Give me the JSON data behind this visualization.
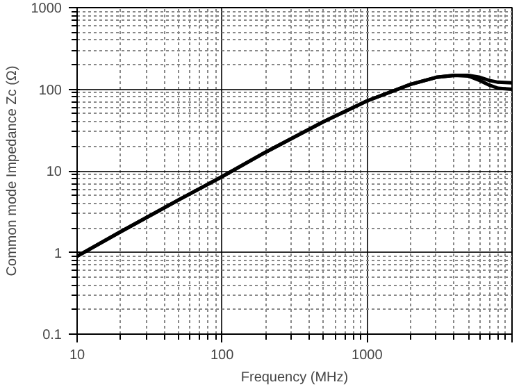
{
  "chart_data": {
    "type": "line",
    "xlabel": "Frequency (MHz)",
    "ylabel": "Common mode Impedance Zc (Ω)",
    "log": "xy",
    "grid": true,
    "line_style": "solid",
    "xlim": [
      10,
      10000
    ],
    "xticks": [
      10,
      100,
      1000,
      {
        "value": 10000,
        "label": null
      }
    ],
    "ylim": [
      0.1,
      1000
    ],
    "yticks": [
      0.1,
      1,
      10,
      100,
      1000
    ],
    "series": [
      {
        "color": "#000000",
        "x": [
          10,
          20,
          50,
          100,
          200,
          500,
          1000,
          2000,
          3000,
          4000,
          5000,
          6000,
          7000,
          8000,
          10000
        ],
        "values": [
          0.9,
          1.8,
          4.4,
          8.5,
          17,
          40,
          72,
          115,
          140,
          148,
          148,
          140,
          128,
          122,
          120
        ]
      },
      {
        "color": "#000000",
        "x": [
          10,
          20,
          50,
          100,
          200,
          500,
          1000,
          2000,
          3000,
          4000,
          5000,
          6000,
          7000,
          8000,
          10000
        ],
        "values": [
          0.9,
          1.8,
          4.4,
          8.5,
          17,
          40,
          72,
          115,
          140,
          148,
          145,
          128,
          112,
          103,
          100
        ]
      }
    ]
  }
}
